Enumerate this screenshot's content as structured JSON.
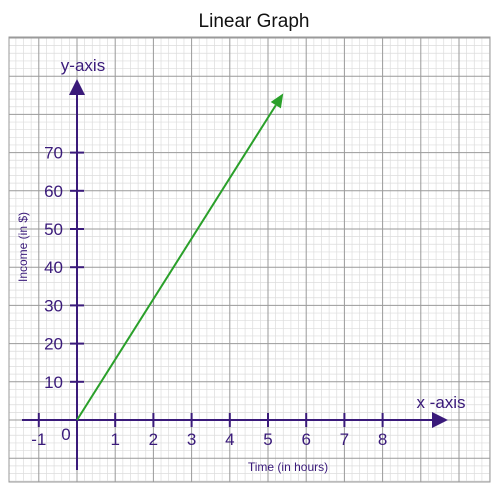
{
  "chart_data": {
    "type": "line",
    "title": "Linear Graph",
    "x_axis_name": "x -axis",
    "y_axis_name": "y-axis",
    "xlabel": "Time (in hours)",
    "ylabel": "Income (in $)",
    "origin_label": "0",
    "x_ticks": [
      "-1",
      "1",
      "2",
      "3",
      "4",
      "5",
      "6",
      "7",
      "8"
    ],
    "y_ticks": [
      "10",
      "20",
      "30",
      "40",
      "50",
      "60",
      "70"
    ],
    "xlim": [
      -1.5,
      9.3
    ],
    "ylim": [
      -13,
      99
    ],
    "grid": true,
    "series": [
      {
        "x": [
          0,
          5.4
        ],
        "y": [
          0,
          85.5
        ],
        "color": "#2aa02a",
        "arrow_end": true
      }
    ],
    "colors": {
      "axis": "#3a1a7a",
      "grid_major": "#9a9a9a",
      "grid_minor": "#dcdcdc",
      "line": "#2aa02a"
    }
  }
}
